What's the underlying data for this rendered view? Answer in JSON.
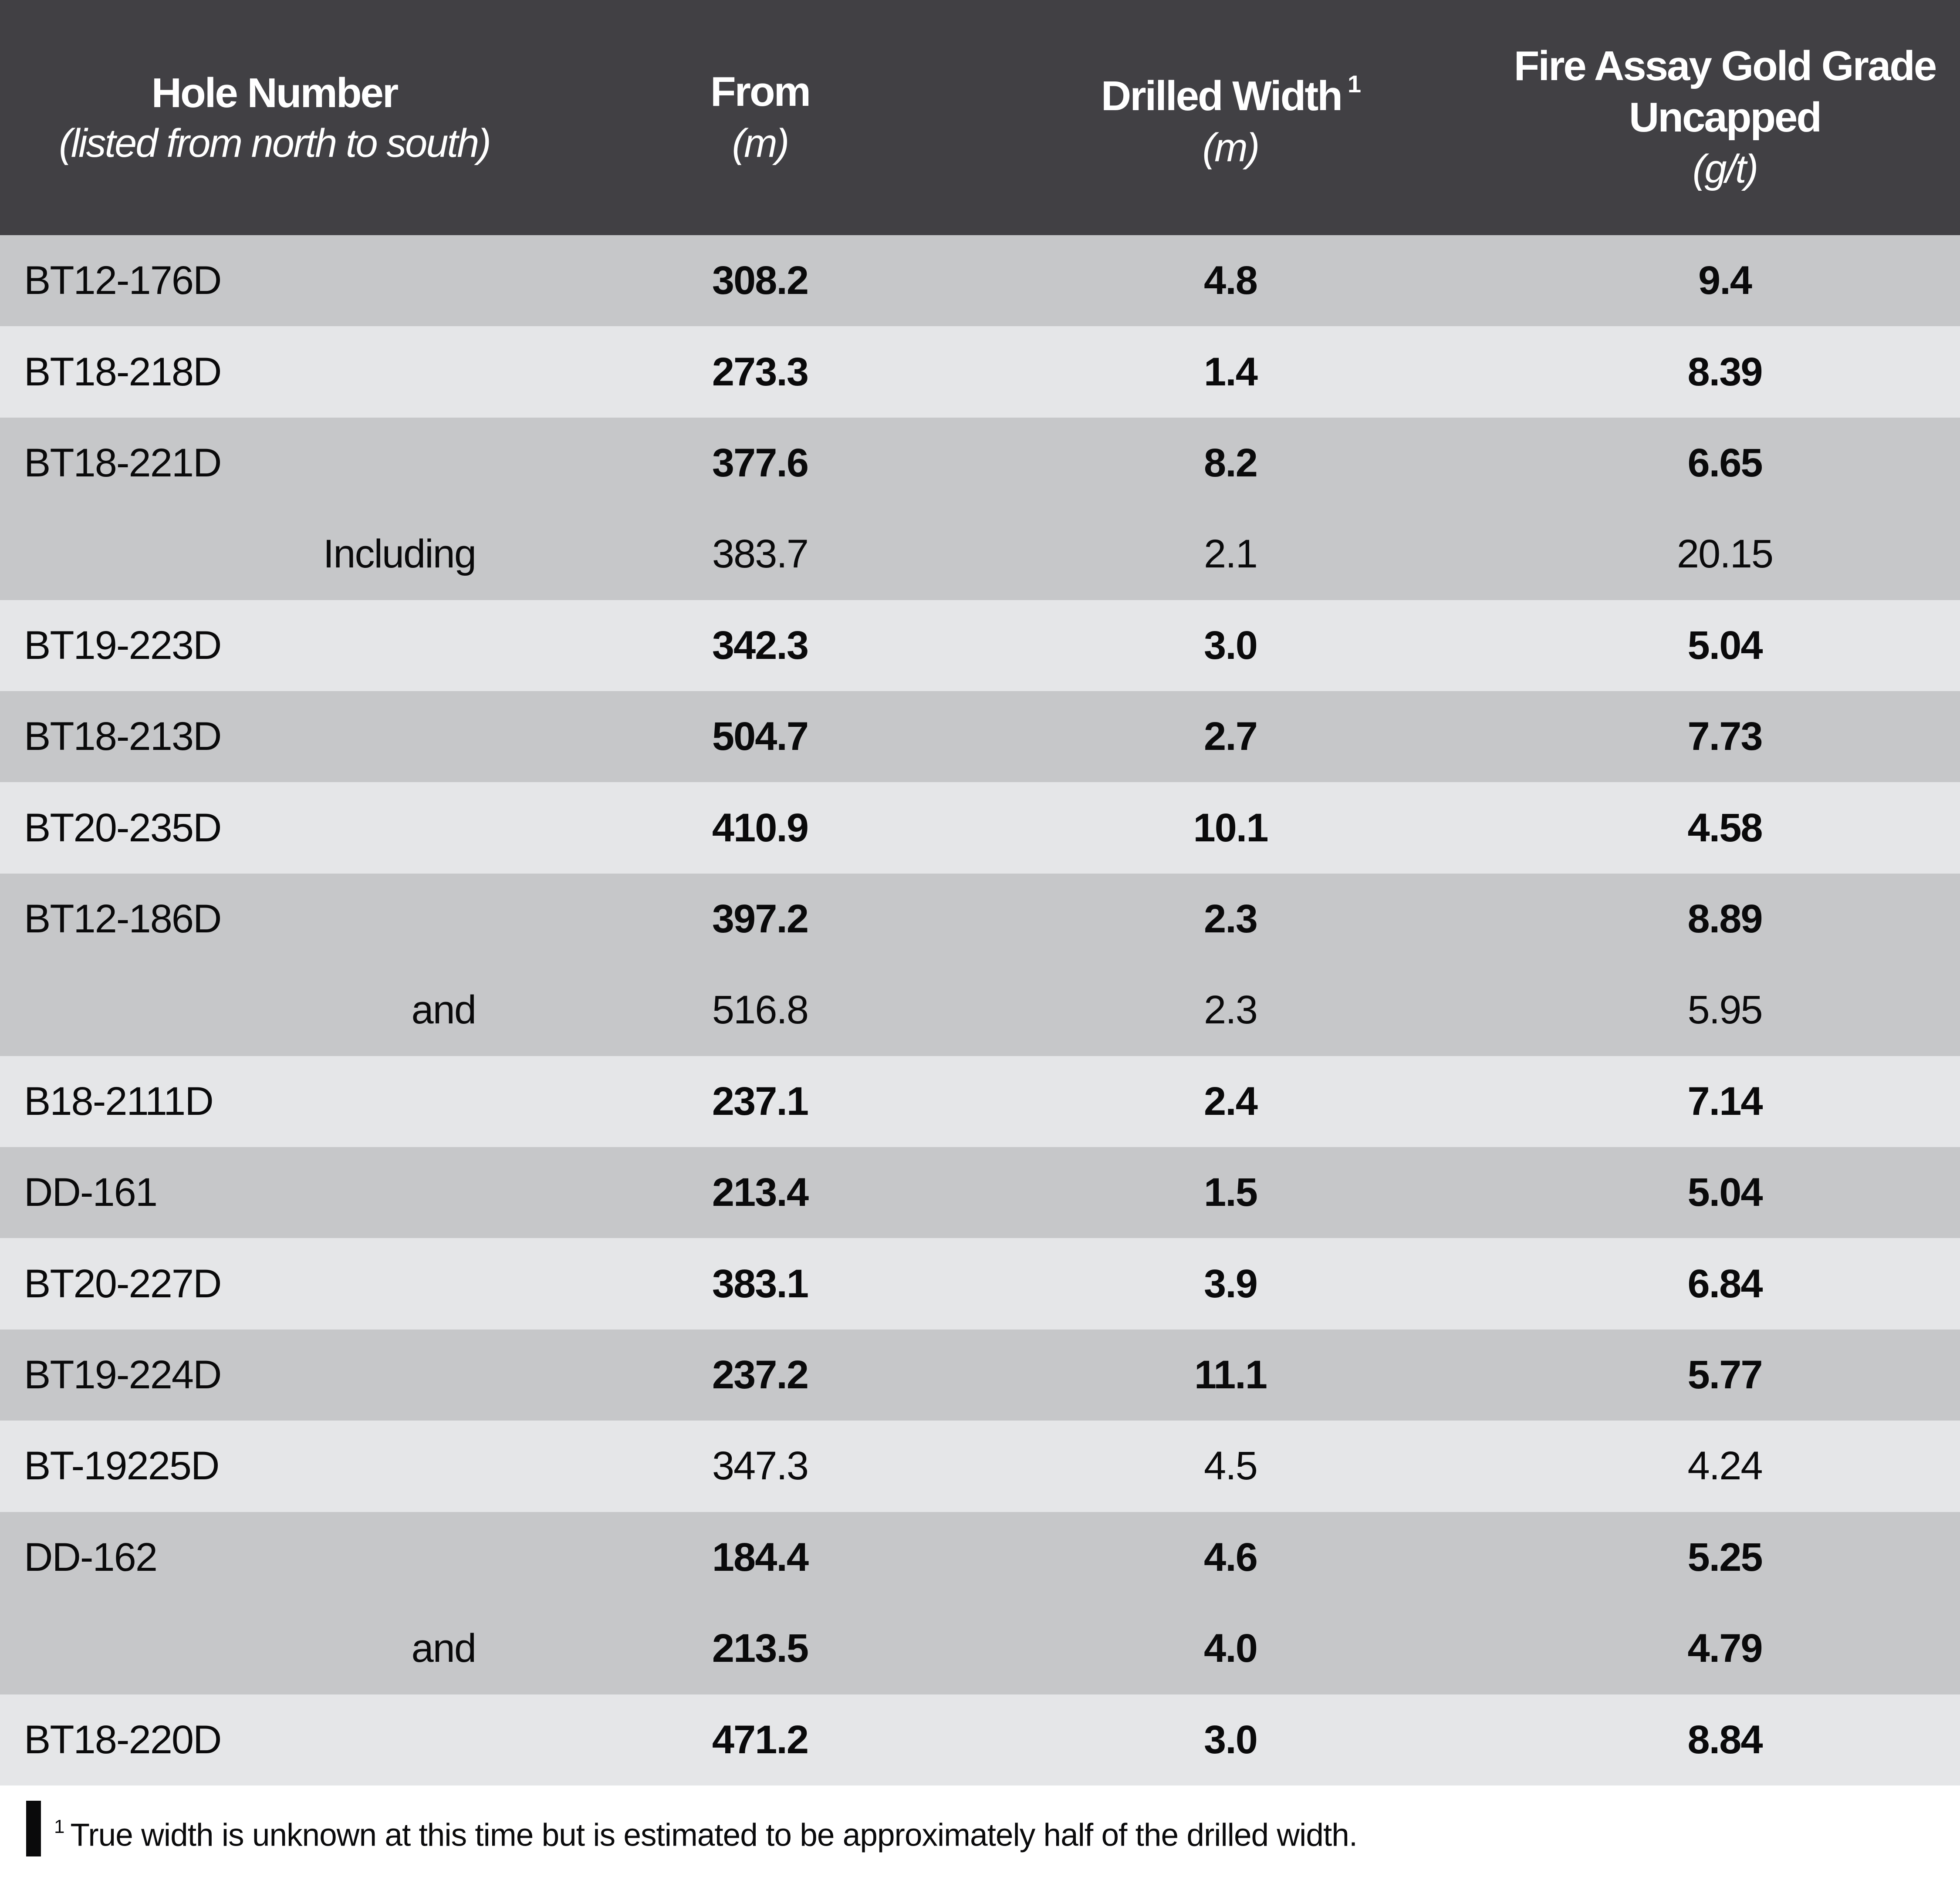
{
  "header": {
    "col1": {
      "title": "Hole Number",
      "subtitle": "(listed from north to south)"
    },
    "col2": {
      "title": "From",
      "unit": "(m)"
    },
    "col3": {
      "title": "Drilled Width",
      "sup": "1",
      "unit": "(m)"
    },
    "col4": {
      "title": "Fire Assay Gold Grade Uncapped",
      "unit": "(g/t)"
    }
  },
  "footnote": {
    "sup": "1",
    "text": "True width is unknown at this time but is estimated to be approximately half of the drilled width."
  },
  "colors": {
    "header_bg": "#414044",
    "header_text": "#ffffff",
    "row_dark": "#c6c7c9",
    "row_light": "#e5e6e8",
    "footnote_bg": "#ffffff",
    "text": "#0a0a0b"
  },
  "chart_data": {
    "type": "table",
    "columns": [
      "Hole Number (listed from north to south)",
      "From (m)",
      "Drilled Width (m)",
      "Fire Assay Gold Grade Uncapped (g/t)"
    ],
    "rows": [
      {
        "hole": "BT12-176D",
        "from": "308.2",
        "width": "4.8",
        "grade": "9.4",
        "bold": true,
        "shade": "dark",
        "indent": false
      },
      {
        "hole": "BT18-218D",
        "from": "273.3",
        "width": "1.4",
        "grade": "8.39",
        "bold": true,
        "shade": "light",
        "indent": false
      },
      {
        "hole": "BT18-221D",
        "from": "377.6",
        "width": "8.2",
        "grade": "6.65",
        "bold": true,
        "shade": "dark",
        "indent": false
      },
      {
        "hole": "Including",
        "from": "383.7",
        "width": "2.1",
        "grade": "20.15",
        "bold": false,
        "shade": "dark",
        "indent": true
      },
      {
        "hole": "BT19-223D",
        "from": "342.3",
        "width": "3.0",
        "grade": "5.04",
        "bold": true,
        "shade": "light",
        "indent": false
      },
      {
        "hole": "BT18-213D",
        "from": "504.7",
        "width": "2.7",
        "grade": "7.73",
        "bold": true,
        "shade": "dark",
        "indent": false
      },
      {
        "hole": "BT20-235D",
        "from": "410.9",
        "width": "10.1",
        "grade": "4.58",
        "bold": true,
        "shade": "light",
        "indent": false
      },
      {
        "hole": "BT12-186D",
        "from": "397.2",
        "width": "2.3",
        "grade": "8.89",
        "bold": true,
        "shade": "dark",
        "indent": false
      },
      {
        "hole": "and",
        "from": "516.8",
        "width": "2.3",
        "grade": "5.95",
        "bold": false,
        "shade": "dark",
        "indent": true
      },
      {
        "hole": "B18-2111D",
        "from": "237.1",
        "width": "2.4",
        "grade": "7.14",
        "bold": true,
        "shade": "light",
        "indent": false
      },
      {
        "hole": "DD-161",
        "from": "213.4",
        "width": "1.5",
        "grade": "5.04",
        "bold": true,
        "shade": "dark",
        "indent": false
      },
      {
        "hole": "BT20-227D",
        "from": "383.1",
        "width": "3.9",
        "grade": "6.84",
        "bold": true,
        "shade": "light",
        "indent": false
      },
      {
        "hole": "BT19-224D",
        "from": "237.2",
        "width": "11.1",
        "grade": "5.77",
        "bold": true,
        "shade": "dark",
        "indent": false
      },
      {
        "hole": "BT-19225D",
        "from": "347.3",
        "width": "4.5",
        "grade": "4.24",
        "bold": false,
        "shade": "light",
        "indent": false
      },
      {
        "hole": "DD-162",
        "from": "184.4",
        "width": "4.6",
        "grade": "5.25",
        "bold": true,
        "shade": "dark",
        "indent": false
      },
      {
        "hole": "and",
        "from": "213.5",
        "width": "4.0",
        "grade": "4.79",
        "bold": true,
        "shade": "dark",
        "indent": true
      },
      {
        "hole": "BT18-220D",
        "from": "471.2",
        "width": "3.0",
        "grade": "8.84",
        "bold": true,
        "shade": "light",
        "indent": false
      }
    ],
    "footnote": "1 True width is unknown at this time but is estimated to be approximately half of the drilled width."
  }
}
